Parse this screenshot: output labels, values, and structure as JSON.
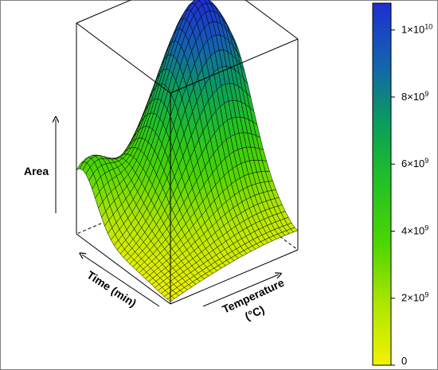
{
  "chart_data": {
    "type": "surface3d",
    "title": "",
    "zlabel": "Area",
    "xlabel": "Time (min)",
    "ylabel": "Temperature",
    "ylabel_unit": "(°C)",
    "zlim": [
      0,
      10800000000
    ],
    "grid": false,
    "box": true,
    "surface_grid": {
      "time_steps": 30,
      "temperature_steps": 30
    },
    "surface_shape": {
      "min_corner_value": 0,
      "peak_value": 10800000000,
      "peak_location": "high temperature, high time",
      "secondary_hump_value": 4500000000,
      "description_source": "read from color bar"
    },
    "colorbar": {
      "colors": [
        "#f2f200",
        "#aee600",
        "#4dd600",
        "#23c224",
        "#0a9e5a",
        "#1462b0",
        "#1e2ed2"
      ],
      "ticks": [
        {
          "value": 0,
          "label": "0"
        },
        {
          "value": 2000000000,
          "mant": "2",
          "exp": "9"
        },
        {
          "value": 4000000000,
          "mant": "4",
          "exp": "9"
        },
        {
          "value": 6000000000,
          "mant": "6",
          "exp": "9"
        },
        {
          "value": 8000000000,
          "mant": "8",
          "exp": "9"
        },
        {
          "value": 10000000000,
          "mant": "1",
          "exp": "10"
        }
      ]
    }
  }
}
